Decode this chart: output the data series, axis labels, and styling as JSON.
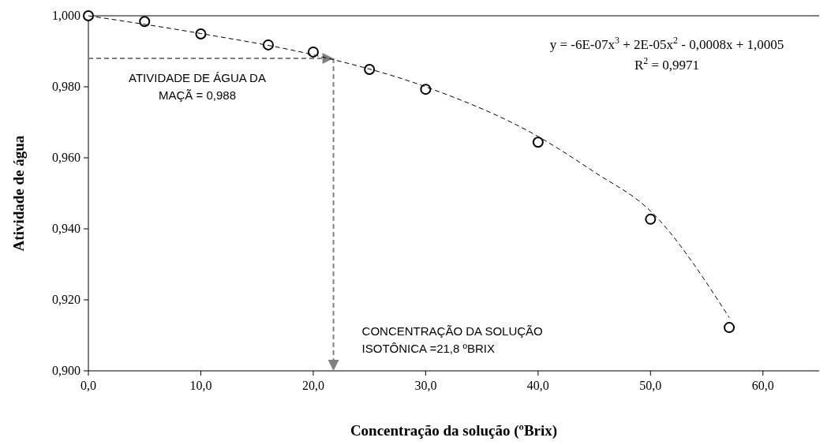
{
  "chart_data": {
    "type": "scatter",
    "xlabel": "Concentração da solução (ºBrix)",
    "ylabel": "Atividade de água",
    "xlim": [
      0,
      65
    ],
    "xticks": [
      {
        "value": 0,
        "label": "0,0"
      },
      {
        "value": 10,
        "label": "10,0"
      },
      {
        "value": 20,
        "label": "20,0"
      },
      {
        "value": 30,
        "label": "30,0"
      },
      {
        "value": 40,
        "label": "40,0"
      },
      {
        "value": 50,
        "label": "50,0"
      },
      {
        "value": 60,
        "label": "60,0"
      }
    ],
    "ylim": [
      0.9,
      1.0
    ],
    "yticks": [
      {
        "value": 0.9,
        "label": "0,900"
      },
      {
        "value": 0.92,
        "label": "0,920"
      },
      {
        "value": 0.94,
        "label": "0,940"
      },
      {
        "value": 0.96,
        "label": "0,960"
      },
      {
        "value": 0.98,
        "label": "0,980"
      },
      {
        "value": 1.0,
        "label": "1,000"
      }
    ],
    "grid": false,
    "series": [
      {
        "color": "#000000",
        "marker": "circle",
        "x": [
          0,
          5,
          10,
          16,
          20,
          25,
          30,
          40,
          50,
          57
        ],
        "values": [
          1.0,
          0.9984,
          0.9949,
          0.9918,
          0.9898,
          0.9849,
          0.9793,
          0.9644,
          0.9427,
          0.9122
        ]
      },
      {
        "type": "line",
        "color": "#000000",
        "marker": "none",
        "line_style": "dashed",
        "x": [
          0,
          10,
          20,
          30,
          40,
          45,
          50,
          57
        ],
        "values": [
          1.0,
          0.995,
          0.989,
          0.98,
          0.966,
          0.956,
          0.945,
          0.915
        ]
      }
    ],
    "ref_lines": [
      {
        "axis": "y",
        "value": 0.988,
        "label": "ATIVIDADE DE ÁGUA DA\nMAÇÃ = 0,988",
        "color": "#808080",
        "line_style": "dashed"
      },
      {
        "axis": "x",
        "value": 21.8,
        "label": "CONCENTRAÇÃO DA SOLUÇÃO\nISOTÔNICA =21,8 ºBRIX",
        "color": "#808080",
        "line_style": "dashed"
      }
    ],
    "annotations": [
      "y = -6E-07x$^{3}$ + 2E-05x$^{2}$ - 0,0008x + 1,0005",
      "R$^{2}$ = 0,9971"
    ]
  }
}
